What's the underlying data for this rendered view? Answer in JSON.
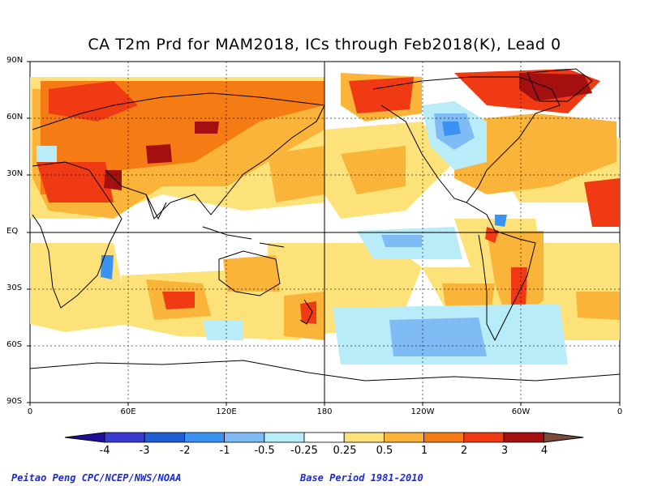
{
  "title": "CA T2m Prd for MAM2018, ICs through Feb2018(K), Lead 0",
  "map": {
    "lat_labels": [
      "90N",
      "60N",
      "30N",
      "EQ",
      "30S",
      "60S",
      "90S"
    ],
    "lon_labels": [
      "0",
      "60E",
      "120E",
      "180",
      "120W",
      "60W",
      "0"
    ]
  },
  "colorbar": {
    "labels": [
      "-4",
      "-3",
      "-2",
      "-1",
      "-0.5",
      "-0.25",
      "0.25",
      "0.5",
      "1",
      "2",
      "3",
      "4"
    ],
    "colors": [
      "#1f0f9a",
      "#3a3ad0",
      "#1d5fd3",
      "#3b92f0",
      "#7fbcf5",
      "#b7ecf8",
      "#ffffff",
      "#fde27a",
      "#fbb43a",
      "#f57b14",
      "#ef3a13",
      "#a40f0f",
      "#c8a094",
      "#7b4a3a"
    ]
  },
  "footer": {
    "left": "Peitao Peng CPC/NCEP/NWS/NOAA",
    "right": "Base Period 1981-2010"
  }
}
